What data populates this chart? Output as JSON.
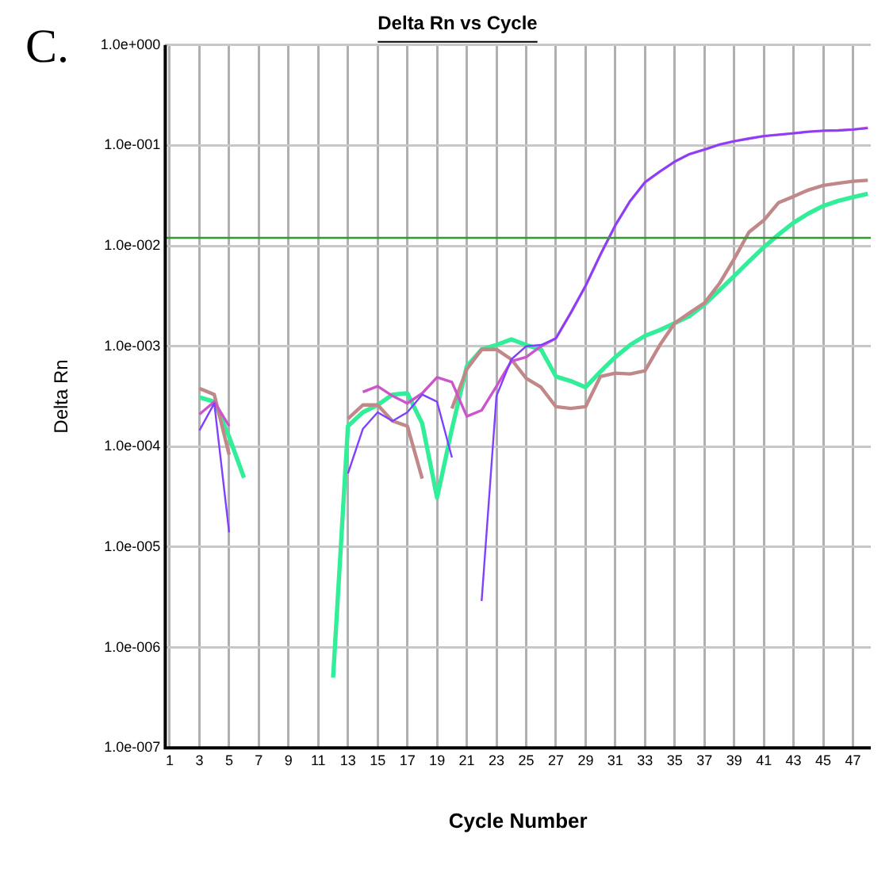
{
  "chart_data": {
    "type": "line",
    "title": "Delta Rn vs Cycle",
    "xlabel": "Cycle Number",
    "ylabel": "Delta Rn",
    "annotations": [
      "C."
    ],
    "x": [
      3,
      4,
      5,
      6,
      7,
      8,
      9,
      10,
      11,
      12,
      13,
      14,
      15,
      16,
      17,
      18,
      19,
      20,
      21,
      22,
      23,
      24,
      25,
      26,
      27,
      28,
      29,
      30,
      31,
      32,
      33,
      34,
      35,
      36,
      37,
      38,
      39,
      40,
      41,
      42,
      43,
      44,
      45,
      46,
      47,
      48
    ],
    "series": [
      {
        "color": "#8040ff",
        "values": [
          0.000145,
          0.00027,
          1.4e-05,
          null,
          null,
          null,
          null,
          null,
          null,
          null,
          5.4e-05,
          0.00015,
          0.00022,
          0.00018,
          0.00022,
          0.00033,
          0.00028,
          7.8e-05,
          null,
          2.9e-06,
          0.00032,
          0.00074,
          0.001,
          0.00103,
          0.0012,
          0.00215,
          0.004,
          0.0082,
          0.016,
          0.028,
          0.043,
          0.055,
          0.069,
          0.082,
          0.091,
          0.102,
          0.11,
          0.117,
          0.124,
          0.128,
          0.132,
          0.137,
          0.14,
          0.141,
          0.144,
          0.148
        ]
      },
      {
        "color": "#cc55cc",
        "values": [
          0.00021,
          0.00028,
          0.00016,
          null,
          null,
          null,
          null,
          null,
          null,
          null,
          null,
          0.00035,
          0.0004,
          0.00032,
          0.00027,
          0.00034,
          0.00049,
          0.00044,
          0.0002,
          0.00023,
          0.0004,
          0.00071,
          0.00078,
          0.001,
          0.0012,
          0.00215,
          0.004,
          0.0082,
          0.016,
          0.028,
          0.043,
          0.055,
          0.069,
          0.082,
          0.091,
          0.102,
          0.11,
          0.117,
          0.124,
          0.128,
          0.132,
          0.137,
          0.14,
          0.141,
          0.144,
          0.15
        ]
      },
      {
        "color": "#c08888",
        "values": [
          0.00038,
          0.00033,
          8.3e-05,
          null,
          null,
          null,
          null,
          null,
          null,
          null,
          0.00019,
          0.00026,
          0.00026,
          0.00018,
          0.00016,
          4.8e-05,
          null,
          0.00024,
          0.00059,
          0.00093,
          0.00093,
          0.00074,
          0.00048,
          0.00039,
          0.00025,
          0.00024,
          0.00025,
          0.0005,
          0.00054,
          0.00053,
          0.00057,
          0.00103,
          0.0017,
          0.00215,
          0.0027,
          0.0042,
          0.0074,
          0.0137,
          0.018,
          0.027,
          0.031,
          0.036,
          0.04,
          0.042,
          0.044,
          0.045
        ]
      },
      {
        "color": "#33ee99",
        "values": [
          0.00031,
          0.00028,
          0.000125,
          4.9e-05,
          null,
          null,
          null,
          null,
          null,
          5e-07,
          0.00016,
          0.00022,
          0.00026,
          0.00033,
          0.00034,
          0.00017,
          3.1e-05,
          0.00015,
          0.00063,
          0.00093,
          0.00103,
          0.00117,
          0.00103,
          0.00093,
          0.0005,
          0.00045,
          0.00039,
          0.00056,
          0.00078,
          0.00103,
          0.00127,
          0.00145,
          0.0017,
          0.002,
          0.0026,
          0.0036,
          0.005,
          0.007,
          0.0097,
          0.013,
          0.017,
          0.021,
          0.025,
          0.028,
          0.0305,
          0.033
        ]
      }
    ],
    "ref_lines": [
      {
        "axis": "y",
        "value": 0.012,
        "color": "#339933"
      }
    ],
    "log": "y",
    "grid": true,
    "legend": false,
    "marker": "none",
    "line_style": "solid",
    "xlim": [
      0.7,
      48.2
    ],
    "xticks": [
      1,
      3,
      5,
      7,
      9,
      11,
      13,
      15,
      17,
      19,
      21,
      23,
      25,
      27,
      29,
      31,
      33,
      35,
      37,
      39,
      41,
      43,
      45,
      47
    ],
    "ylim": [
      1e-07,
      1
    ],
    "yticks": [
      {
        "value": 1e-07,
        "label": "1.0e-007"
      },
      {
        "value": 1e-06,
        "label": "1.0e-006"
      },
      {
        "value": 1e-05,
        "label": "1.0e-005"
      },
      {
        "value": 0.0001,
        "label": "1.0e-004"
      },
      {
        "value": 0.001,
        "label": "1.0e-003"
      },
      {
        "value": 0.01,
        "label": "1.0e-002"
      },
      {
        "value": 0.1,
        "label": "1.0e-001"
      },
      {
        "value": 1,
        "label": "1.0e+000"
      }
    ]
  }
}
